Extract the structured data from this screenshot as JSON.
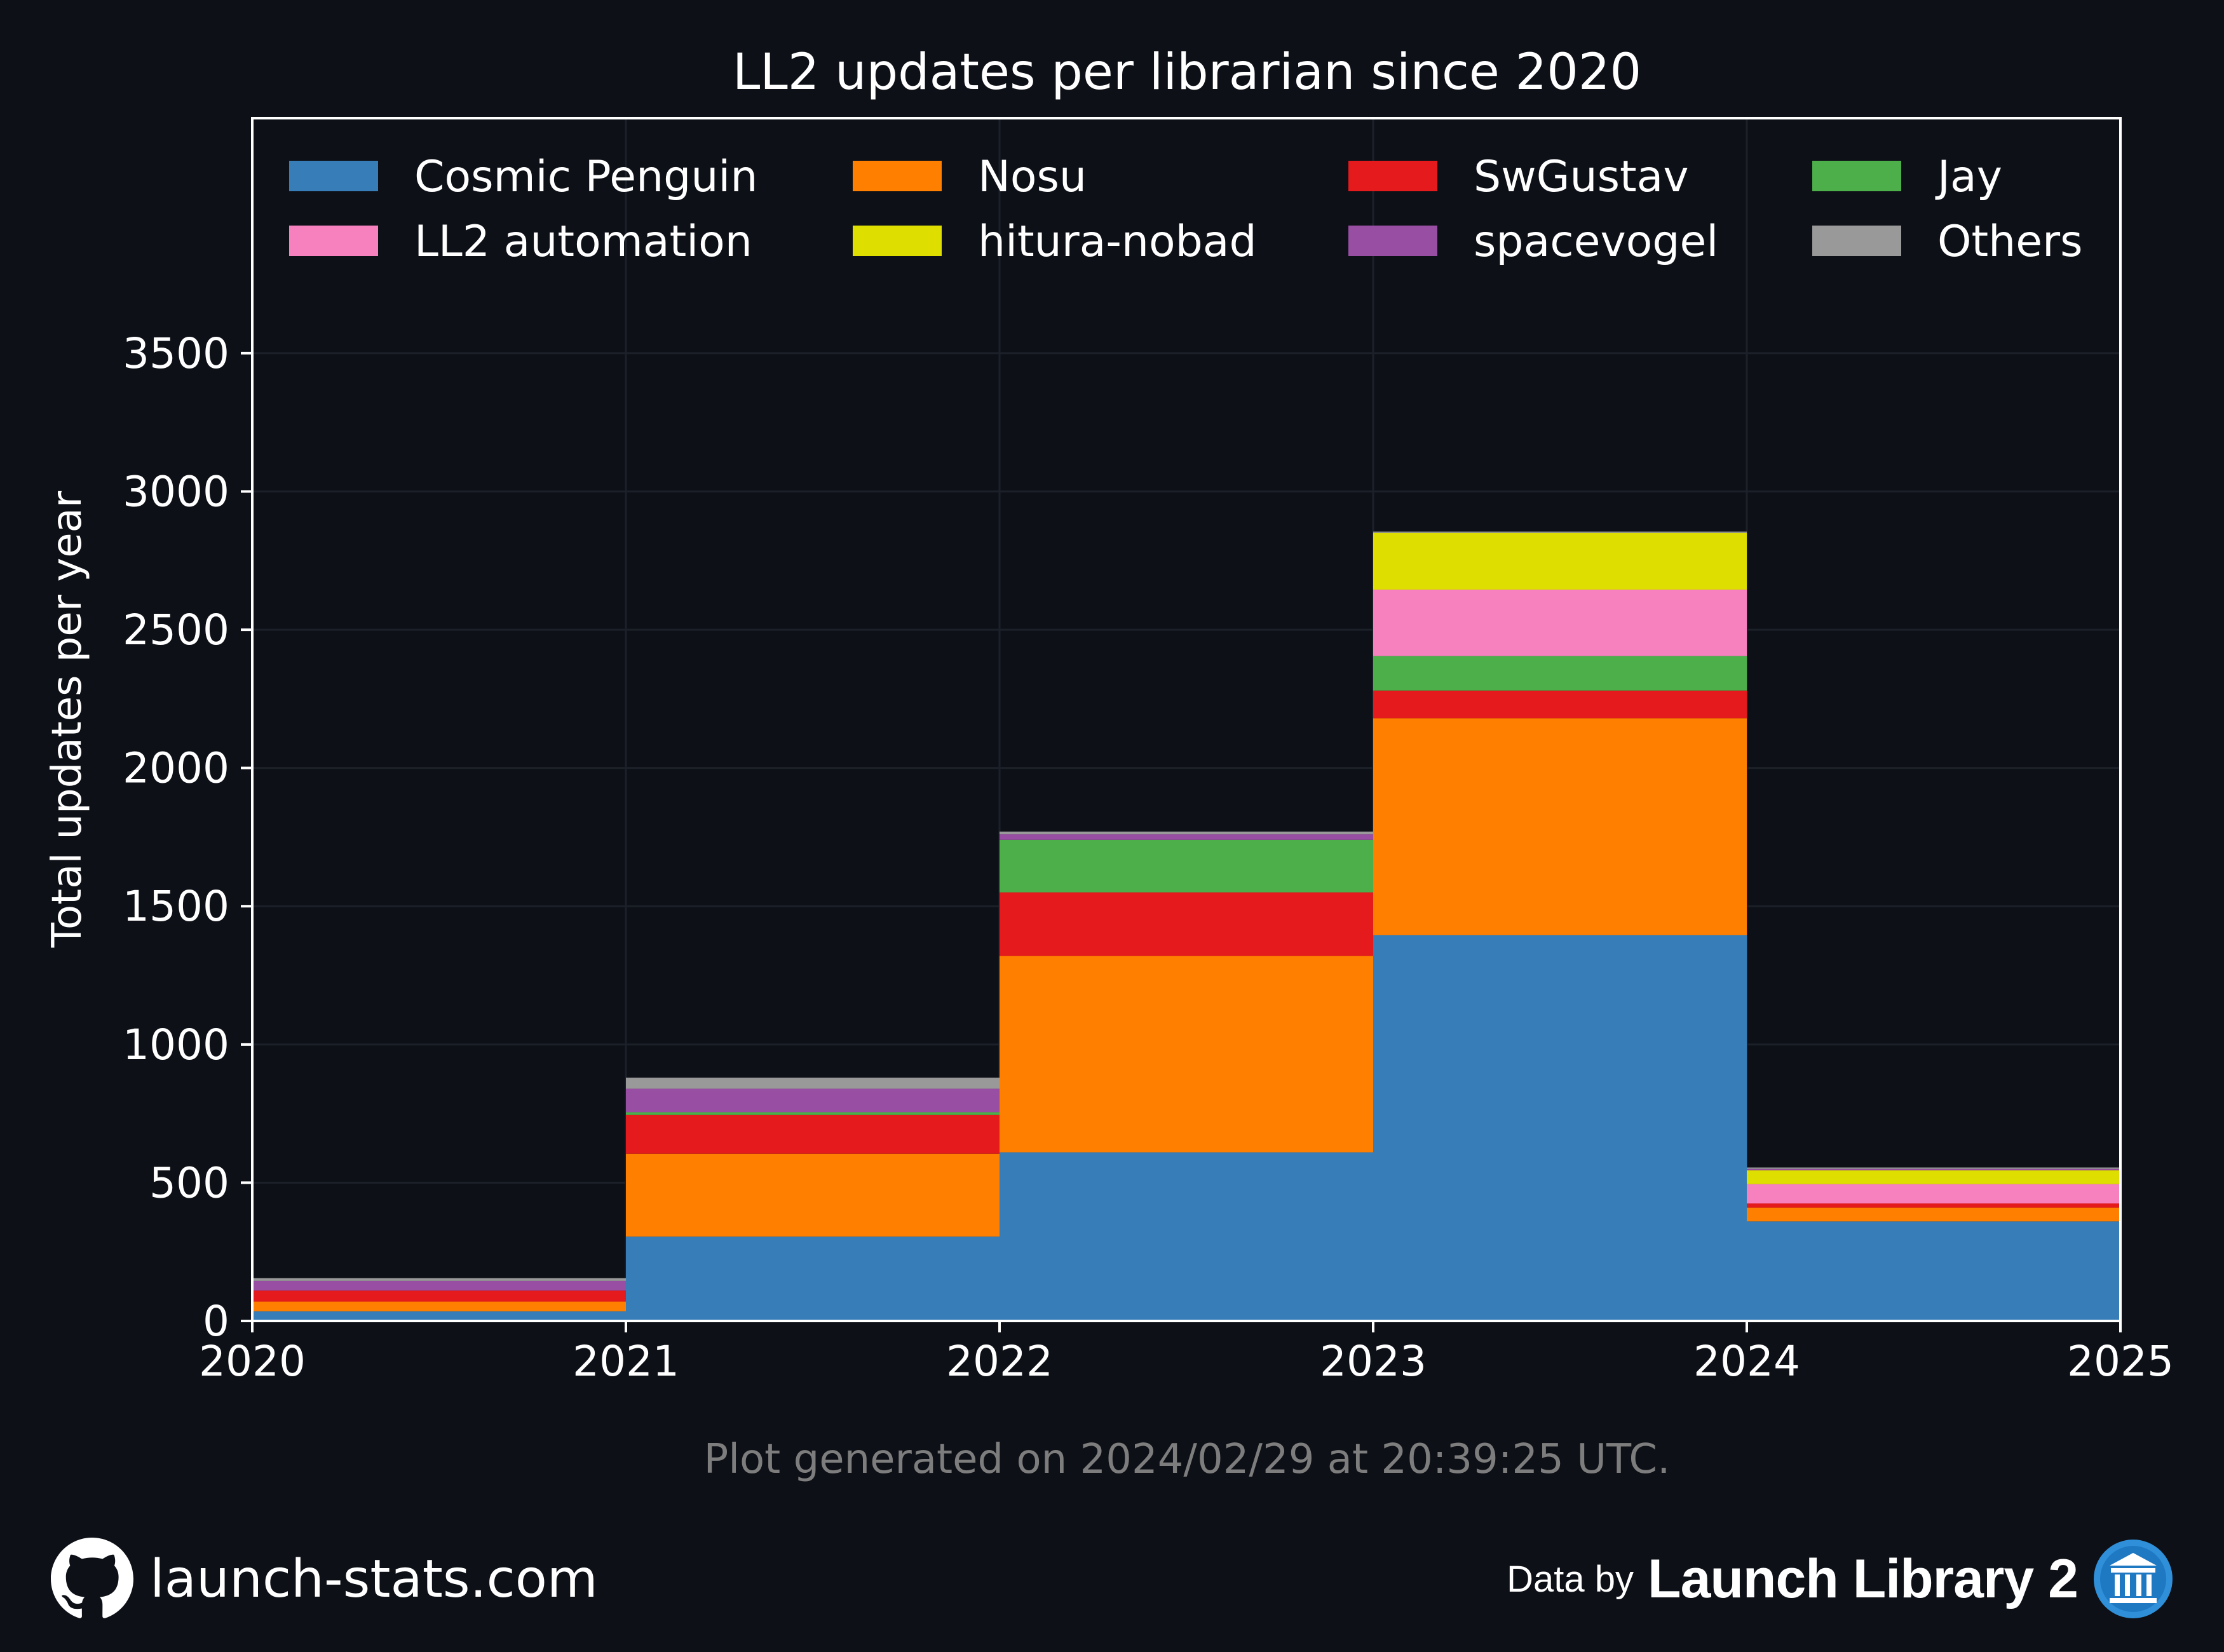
{
  "chart_data": {
    "type": "bar",
    "stacked": true,
    "title": "LL2 updates per librarian since 2020",
    "xlabel": "",
    "ylabel": "Total updates per year",
    "categories": [
      "2020",
      "2021",
      "2022",
      "2023",
      "2024"
    ],
    "x_ticks": [
      "2020",
      "2021",
      "2022",
      "2023",
      "2024",
      "2025"
    ],
    "y_ticks": [
      "0",
      "500",
      "1000",
      "1500",
      "2000",
      "2500",
      "3000",
      "3500"
    ],
    "xlim": [
      2020,
      2025
    ],
    "ylim": [
      0,
      4350
    ],
    "grid": true,
    "legend_position": "top",
    "series": [
      {
        "name": "Cosmic Penguin",
        "color": "#377eb8",
        "values": [
          35,
          305,
          610,
          1395,
          360
        ]
      },
      {
        "name": "Nosu",
        "color": "#ff7f00",
        "values": [
          35,
          300,
          710,
          785,
          50
        ]
      },
      {
        "name": "SwGustav",
        "color": "#e41a1c",
        "values": [
          40,
          140,
          230,
          100,
          15
        ]
      },
      {
        "name": "Jay",
        "color": "#4daf4a",
        "values": [
          0,
          10,
          190,
          125,
          0
        ]
      },
      {
        "name": "LL2 automation",
        "color": "#f781bf",
        "values": [
          0,
          0,
          0,
          240,
          70
        ]
      },
      {
        "name": "hitura-nobad",
        "color": "#dede00",
        "values": [
          0,
          0,
          0,
          205,
          50
        ]
      },
      {
        "name": "spacevogel",
        "color": "#984ea3",
        "values": [
          35,
          85,
          20,
          0,
          5
        ]
      },
      {
        "name": "Others",
        "color": "#999999",
        "values": [
          10,
          40,
          10,
          5,
          5
        ]
      }
    ],
    "legend_order": [
      "Cosmic Penguin",
      "Nosu",
      "SwGustav",
      "Jay",
      "LL2 automation",
      "hitura-nobad",
      "spacevogel",
      "Others"
    ]
  },
  "note": "Plot generated on 2024/02/29 at 20:39:25 UTC.",
  "footer": {
    "site": "launch-stats.com",
    "data_by": "Data by",
    "brand": "Launch Library 2",
    "site_icon": "github-icon",
    "brand_icon": "library-icon"
  },
  "colors": {
    "background": "#0d1017",
    "axes": "#ffffff",
    "grid": "#1c2029"
  }
}
